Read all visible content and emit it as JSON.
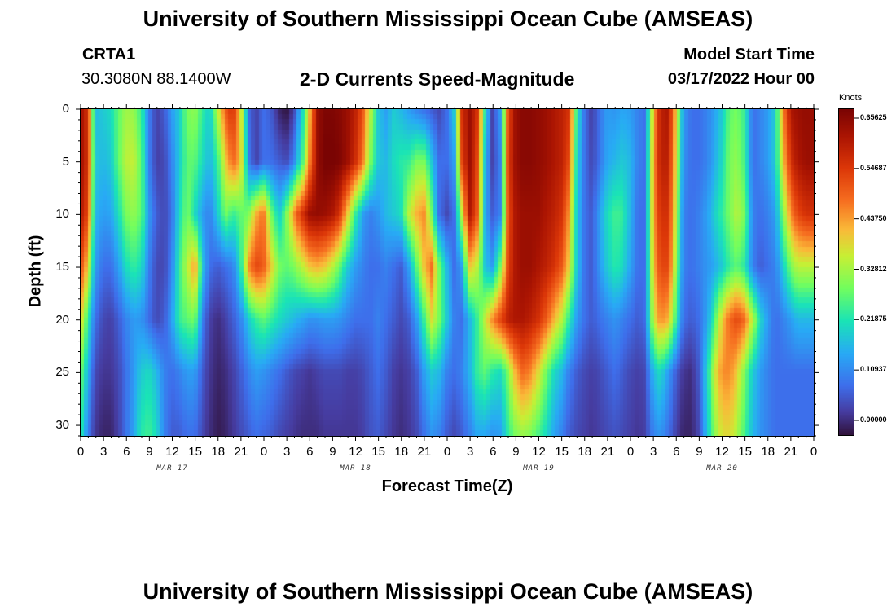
{
  "header": {
    "title": "University of Southern Mississippi Ocean Cube (AMSEAS)",
    "station": "CRTA1",
    "coords": "30.3080N  88.1400W",
    "subtitle": "2-D Currents Speed-Magnitude",
    "model_start_label": "Model Start Time",
    "model_start_value": "03/17/2022 Hour 00"
  },
  "footer": {
    "title": "University of Southern Mississippi Ocean Cube (AMSEAS)"
  },
  "chart_data": {
    "type": "heatmap",
    "xlabel": "Forecast Time(Z)",
    "ylabel": "Depth (ft)",
    "x_range_hours": [
      0,
      96
    ],
    "y_range_ft": [
      0,
      31
    ],
    "x_tick_labels": [
      "0",
      "3",
      "6",
      "9",
      "12",
      "15",
      "18",
      "21",
      "0",
      "3",
      "6",
      "9",
      "12",
      "15",
      "18",
      "21",
      "0",
      "3",
      "6",
      "9",
      "12",
      "15",
      "18",
      "21",
      "0",
      "3",
      "6",
      "9",
      "12",
      "15",
      "18",
      "21",
      "0"
    ],
    "y_tick_labels": [
      "0",
      "5",
      "10",
      "15",
      "20",
      "25",
      "30"
    ],
    "y_tick_values": [
      0,
      5,
      10,
      15,
      20,
      25,
      30
    ],
    "dates": [
      "MAR 17",
      "MAR 18",
      "MAR 19",
      "MAR 20"
    ],
    "colorbar": {
      "unit": "Knots",
      "range": [
        0.0,
        0.65625
      ],
      "ticks": [
        "0.00000",
        "0.10937",
        "0.21875",
        "0.32812",
        "0.43750",
        "0.54687",
        "0.65625"
      ],
      "tick_values": [
        0.0,
        0.109375,
        0.21875,
        0.328125,
        0.4375,
        0.546875,
        0.65625
      ]
    },
    "depths_ft": [
      0,
      5,
      10,
      15,
      20,
      25,
      31
    ],
    "hours": [
      0,
      1,
      2,
      3,
      4,
      5,
      6,
      7,
      8,
      9,
      10,
      11,
      12,
      13,
      14,
      15,
      16,
      17,
      18,
      19,
      20,
      21,
      22,
      23,
      24,
      25,
      26,
      27,
      28,
      29,
      30,
      31,
      32,
      33,
      34,
      35,
      36,
      37,
      38,
      39,
      40,
      41,
      42,
      43,
      44,
      45,
      46,
      47,
      48,
      49,
      50,
      51,
      52,
      53,
      54,
      55,
      56,
      57,
      58,
      59,
      60,
      61,
      62,
      63,
      64,
      65,
      66,
      67,
      68,
      69,
      70,
      71,
      72,
      73,
      74,
      75,
      76,
      77,
      78,
      79,
      80,
      81,
      82,
      83,
      84,
      85,
      86,
      87,
      88,
      89,
      90,
      91,
      92,
      93,
      94,
      95,
      96
    ],
    "speed_knots": [
      [
        0.62,
        0.55,
        0.18,
        0.2,
        0.22,
        0.28,
        0.33,
        0.32,
        0.25,
        0.12,
        0.05,
        0.08,
        0.15,
        0.2,
        0.3,
        0.32,
        0.25,
        0.2,
        0.35,
        0.5,
        0.55,
        0.4,
        0.1,
        0.05,
        0.1,
        0.08,
        0.02,
        0.0,
        0.05,
        0.2,
        0.4,
        0.62,
        0.65,
        0.65,
        0.64,
        0.62,
        0.58,
        0.5,
        0.35,
        0.2,
        0.15,
        0.2,
        0.18,
        0.15,
        0.12,
        0.1,
        0.08,
        0.06,
        0.1,
        0.2,
        0.55,
        0.62,
        0.55,
        0.25,
        0.05,
        0.15,
        0.5,
        0.62,
        0.64,
        0.64,
        0.63,
        0.62,
        0.6,
        0.58,
        0.55,
        0.25,
        0.1,
        0.05,
        0.1,
        0.15,
        0.14,
        0.16,
        0.15,
        0.12,
        0.1,
        0.4,
        0.58,
        0.6,
        0.4,
        0.15,
        0.1,
        0.1,
        0.12,
        0.15,
        0.2,
        0.28,
        0.3,
        0.25,
        0.1,
        0.12,
        0.15,
        0.2,
        0.45,
        0.6,
        0.62,
        0.63,
        0.62
      ],
      [
        0.62,
        0.55,
        0.2,
        0.18,
        0.2,
        0.28,
        0.35,
        0.36,
        0.28,
        0.12,
        0.05,
        0.06,
        0.12,
        0.2,
        0.28,
        0.28,
        0.22,
        0.18,
        0.25,
        0.4,
        0.48,
        0.42,
        0.12,
        0.05,
        0.1,
        0.1,
        0.08,
        0.06,
        0.12,
        0.25,
        0.45,
        0.62,
        0.66,
        0.66,
        0.65,
        0.62,
        0.56,
        0.46,
        0.3,
        0.2,
        0.18,
        0.22,
        0.24,
        0.25,
        0.3,
        0.3,
        0.2,
        0.1,
        0.1,
        0.15,
        0.52,
        0.62,
        0.52,
        0.2,
        0.05,
        0.12,
        0.52,
        0.62,
        0.64,
        0.64,
        0.63,
        0.62,
        0.6,
        0.58,
        0.52,
        0.22,
        0.1,
        0.06,
        0.1,
        0.16,
        0.18,
        0.2,
        0.18,
        0.12,
        0.1,
        0.42,
        0.58,
        0.58,
        0.38,
        0.14,
        0.1,
        0.1,
        0.12,
        0.16,
        0.22,
        0.3,
        0.32,
        0.26,
        0.1,
        0.12,
        0.15,
        0.2,
        0.4,
        0.55,
        0.6,
        0.62,
        0.62
      ],
      [
        0.6,
        0.52,
        0.18,
        0.15,
        0.16,
        0.22,
        0.3,
        0.32,
        0.28,
        0.15,
        0.08,
        0.06,
        0.1,
        0.22,
        0.3,
        0.22,
        0.15,
        0.12,
        0.2,
        0.3,
        0.25,
        0.28,
        0.3,
        0.42,
        0.48,
        0.3,
        0.2,
        0.3,
        0.45,
        0.55,
        0.62,
        0.63,
        0.62,
        0.6,
        0.54,
        0.4,
        0.25,
        0.15,
        0.12,
        0.14,
        0.18,
        0.2,
        0.22,
        0.35,
        0.42,
        0.45,
        0.3,
        0.1,
        0.06,
        0.1,
        0.35,
        0.6,
        0.5,
        0.18,
        0.08,
        0.12,
        0.5,
        0.6,
        0.62,
        0.62,
        0.62,
        0.6,
        0.58,
        0.55,
        0.45,
        0.2,
        0.1,
        0.08,
        0.15,
        0.22,
        0.26,
        0.25,
        0.18,
        0.1,
        0.1,
        0.42,
        0.55,
        0.55,
        0.35,
        0.12,
        0.1,
        0.12,
        0.15,
        0.2,
        0.25,
        0.3,
        0.35,
        0.3,
        0.12,
        0.1,
        0.12,
        0.15,
        0.3,
        0.45,
        0.52,
        0.55,
        0.55
      ],
      [
        0.52,
        0.4,
        0.15,
        0.1,
        0.1,
        0.15,
        0.22,
        0.25,
        0.22,
        0.12,
        0.06,
        0.06,
        0.12,
        0.25,
        0.35,
        0.45,
        0.2,
        0.1,
        0.08,
        0.1,
        0.12,
        0.22,
        0.45,
        0.52,
        0.5,
        0.4,
        0.3,
        0.28,
        0.3,
        0.35,
        0.4,
        0.42,
        0.4,
        0.35,
        0.28,
        0.2,
        0.15,
        0.12,
        0.1,
        0.1,
        0.12,
        0.1,
        0.08,
        0.15,
        0.28,
        0.4,
        0.48,
        0.3,
        0.18,
        0.1,
        0.15,
        0.4,
        0.35,
        0.2,
        0.15,
        0.3,
        0.52,
        0.6,
        0.62,
        0.62,
        0.6,
        0.58,
        0.55,
        0.5,
        0.4,
        0.2,
        0.1,
        0.08,
        0.14,
        0.2,
        0.24,
        0.22,
        0.16,
        0.1,
        0.1,
        0.4,
        0.52,
        0.52,
        0.32,
        0.12,
        0.1,
        0.12,
        0.14,
        0.16,
        0.2,
        0.25,
        0.28,
        0.24,
        0.12,
        0.08,
        0.1,
        0.12,
        0.2,
        0.3,
        0.35,
        0.35,
        0.35
      ],
      [
        0.4,
        0.25,
        0.1,
        0.06,
        0.05,
        0.08,
        0.12,
        0.15,
        0.14,
        0.1,
        0.06,
        0.08,
        0.15,
        0.25,
        0.28,
        0.3,
        0.12,
        0.05,
        0.03,
        0.05,
        0.08,
        0.12,
        0.2,
        0.25,
        0.28,
        0.25,
        0.22,
        0.2,
        0.18,
        0.16,
        0.14,
        0.14,
        0.15,
        0.15,
        0.14,
        0.12,
        0.1,
        0.1,
        0.1,
        0.12,
        0.1,
        0.08,
        0.06,
        0.08,
        0.15,
        0.25,
        0.38,
        0.3,
        0.2,
        0.12,
        0.1,
        0.18,
        0.25,
        0.35,
        0.45,
        0.52,
        0.58,
        0.6,
        0.6,
        0.58,
        0.55,
        0.5,
        0.42,
        0.35,
        0.25,
        0.15,
        0.1,
        0.08,
        0.1,
        0.12,
        0.14,
        0.12,
        0.1,
        0.08,
        0.1,
        0.35,
        0.45,
        0.42,
        0.25,
        0.1,
        0.08,
        0.1,
        0.15,
        0.25,
        0.4,
        0.48,
        0.52,
        0.48,
        0.35,
        0.22,
        0.15,
        0.1,
        0.12,
        0.15,
        0.18,
        0.18,
        0.18
      ],
      [
        0.3,
        0.18,
        0.06,
        0.04,
        0.04,
        0.06,
        0.1,
        0.15,
        0.2,
        0.22,
        0.18,
        0.12,
        0.1,
        0.12,
        0.15,
        0.15,
        0.08,
        0.04,
        0.02,
        0.03,
        0.05,
        0.08,
        0.12,
        0.15,
        0.14,
        0.12,
        0.1,
        0.08,
        0.06,
        0.05,
        0.04,
        0.05,
        0.06,
        0.06,
        0.06,
        0.05,
        0.05,
        0.06,
        0.08,
        0.1,
        0.08,
        0.05,
        0.04,
        0.05,
        0.08,
        0.15,
        0.2,
        0.18,
        0.12,
        0.1,
        0.12,
        0.18,
        0.25,
        0.28,
        0.24,
        0.22,
        0.3,
        0.42,
        0.48,
        0.45,
        0.38,
        0.3,
        0.22,
        0.18,
        0.12,
        0.08,
        0.06,
        0.05,
        0.06,
        0.08,
        0.1,
        0.08,
        0.06,
        0.05,
        0.06,
        0.18,
        0.22,
        0.15,
        0.08,
        0.04,
        0.03,
        0.08,
        0.2,
        0.35,
        0.45,
        0.45,
        0.4,
        0.3,
        0.2,
        0.15,
        0.12,
        0.1,
        0.1,
        0.1,
        0.1,
        0.1,
        0.1
      ],
      [
        0.25,
        0.12,
        0.04,
        0.02,
        0.02,
        0.05,
        0.1,
        0.16,
        0.24,
        0.26,
        0.22,
        0.12,
        0.08,
        0.08,
        0.1,
        0.1,
        0.06,
        0.03,
        0.01,
        0.02,
        0.04,
        0.06,
        0.08,
        0.1,
        0.09,
        0.08,
        0.06,
        0.05,
        0.04,
        0.03,
        0.03,
        0.03,
        0.04,
        0.04,
        0.04,
        0.04,
        0.04,
        0.05,
        0.07,
        0.08,
        0.06,
        0.04,
        0.03,
        0.04,
        0.06,
        0.1,
        0.14,
        0.12,
        0.08,
        0.06,
        0.08,
        0.12,
        0.16,
        0.16,
        0.14,
        0.15,
        0.24,
        0.3,
        0.32,
        0.3,
        0.26,
        0.22,
        0.16,
        0.12,
        0.08,
        0.06,
        0.05,
        0.04,
        0.05,
        0.06,
        0.07,
        0.06,
        0.05,
        0.04,
        0.05,
        0.12,
        0.14,
        0.1,
        0.05,
        0.02,
        0.02,
        0.06,
        0.18,
        0.3,
        0.38,
        0.38,
        0.34,
        0.26,
        0.18,
        0.14,
        0.12,
        0.1,
        0.1,
        0.1,
        0.1,
        0.1,
        0.1
      ]
    ]
  }
}
